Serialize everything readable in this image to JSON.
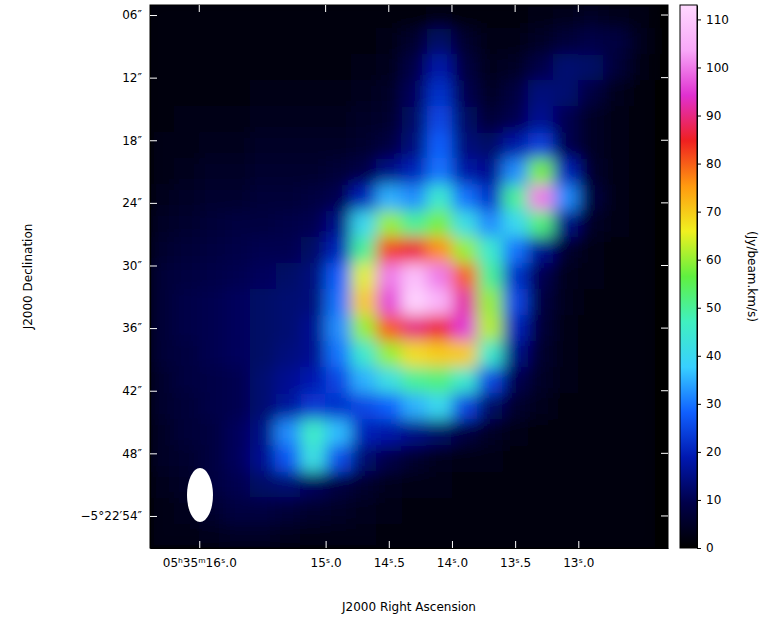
{
  "chart_data": {
    "type": "heatmap",
    "xlabel": "J2000 Right Ascension",
    "ylabel": "J2000 Declination",
    "xlim": [
      16.39,
      12.29
    ],
    "ylim": [
      5.04,
      57.07
    ],
    "xticks": [
      {
        "value": 16.0,
        "label": "05ʰ35ᵐ16ˢ.0"
      },
      {
        "value": 15.0,
        "label": "15ˢ.0"
      },
      {
        "value": 14.5,
        "label": "14ˢ.5"
      },
      {
        "value": 14.0,
        "label": "14ˢ.0"
      },
      {
        "value": 13.5,
        "label": "13ˢ.5"
      },
      {
        "value": 13.0,
        "label": "13ˢ.0"
      }
    ],
    "yticks": [
      {
        "value": 6,
        "label": "06″"
      },
      {
        "value": 12,
        "label": "12″"
      },
      {
        "value": 18,
        "label": "18″"
      },
      {
        "value": 24,
        "label": "24″"
      },
      {
        "value": 30,
        "label": "30″"
      },
      {
        "value": 36,
        "label": "36″"
      },
      {
        "value": 42,
        "label": "42″"
      },
      {
        "value": 48,
        "label": "48″"
      },
      {
        "value": 54,
        "label": "−5°22′54″"
      }
    ],
    "x": [
      16.3,
      16.1,
      15.9,
      15.7,
      15.5,
      15.3,
      15.1,
      14.9,
      14.7,
      14.5,
      14.3,
      14.1,
      13.9,
      13.7,
      13.5,
      13.3,
      13.1,
      12.9,
      12.7,
      12.5
    ],
    "y": [
      6,
      8.5,
      11,
      13.5,
      16,
      18.5,
      21,
      23.5,
      26,
      28.5,
      31,
      33.5,
      36,
      38.5,
      41,
      43.5,
      46,
      48.5,
      51,
      53.5,
      56
    ],
    "z": [
      [
        2,
        2,
        2,
        2,
        2,
        2,
        2,
        2,
        2,
        2,
        2,
        3,
        2,
        2,
        2,
        3,
        4,
        5,
        4,
        3
      ],
      [
        2,
        2,
        2,
        2,
        2,
        2,
        2,
        2,
        2,
        3,
        6,
        12,
        6,
        3,
        3,
        5,
        7,
        9,
        8,
        4
      ],
      [
        2,
        2,
        2,
        2,
        2,
        2,
        2,
        2,
        3,
        4,
        9,
        18,
        8,
        4,
        5,
        9,
        13,
        12,
        7,
        3
      ],
      [
        2,
        2,
        2,
        2,
        3,
        3,
        3,
        3,
        4,
        5,
        11,
        22,
        10,
        5,
        8,
        14,
        13,
        8,
        4,
        2
      ],
      [
        2,
        3,
        3,
        3,
        4,
        4,
        4,
        4,
        5,
        6,
        12,
        25,
        12,
        7,
        10,
        16,
        10,
        5,
        3,
        2
      ],
      [
        3,
        3,
        4,
        4,
        5,
        5,
        5,
        5,
        6,
        8,
        14,
        28,
        14,
        12,
        18,
        24,
        10,
        5,
        3,
        2
      ],
      [
        3,
        4,
        5,
        5,
        6,
        6,
        6,
        7,
        9,
        15,
        20,
        30,
        18,
        16,
        32,
        58,
        20,
        6,
        3,
        2
      ],
      [
        4,
        5,
        6,
        6,
        7,
        7,
        8,
        10,
        20,
        35,
        32,
        45,
        30,
        22,
        50,
        100,
        32,
        8,
        3,
        2
      ],
      [
        5,
        6,
        7,
        8,
        8,
        9,
        10,
        15,
        40,
        60,
        50,
        58,
        42,
        32,
        40,
        52,
        15,
        5,
        3,
        2
      ],
      [
        6,
        7,
        8,
        9,
        10,
        10,
        12,
        20,
        50,
        82,
        86,
        76,
        60,
        45,
        30,
        16,
        6,
        3,
        2,
        2
      ],
      [
        7,
        8,
        9,
        10,
        11,
        12,
        14,
        28,
        65,
        100,
        108,
        100,
        80,
        50,
        22,
        10,
        4,
        3,
        2,
        2
      ],
      [
        7,
        9,
        10,
        11,
        12,
        13,
        14,
        30,
        70,
        96,
        112,
        106,
        92,
        60,
        25,
        8,
        4,
        2,
        2,
        2
      ],
      [
        7,
        9,
        10,
        11,
        12,
        13,
        16,
        32,
        60,
        80,
        90,
        86,
        95,
        62,
        20,
        7,
        3,
        2,
        2,
        2
      ],
      [
        7,
        8,
        10,
        11,
        12,
        14,
        16,
        30,
        45,
        60,
        68,
        70,
        70,
        45,
        15,
        6,
        3,
        2,
        2,
        2
      ],
      [
        6,
        8,
        9,
        10,
        13,
        16,
        19,
        25,
        35,
        42,
        50,
        52,
        45,
        25,
        10,
        5,
        3,
        2,
        2,
        2
      ],
      [
        6,
        7,
        9,
        10,
        13,
        17,
        23,
        22,
        25,
        28,
        35,
        40,
        25,
        12,
        6,
        4,
        2,
        2,
        2,
        2
      ],
      [
        5,
        7,
        8,
        11,
        15,
        32,
        46,
        36,
        20,
        18,
        15,
        12,
        8,
        5,
        3,
        2,
        2,
        2,
        2,
        2
      ],
      [
        5,
        6,
        8,
        11,
        16,
        27,
        42,
        26,
        13,
        9,
        6,
        4,
        3,
        3,
        2,
        2,
        2,
        2,
        2,
        2
      ],
      [
        4,
        5,
        8,
        10,
        12,
        13,
        11,
        8,
        6,
        4,
        3,
        3,
        2,
        2,
        2,
        2,
        2,
        2,
        2,
        2
      ],
      [
        3,
        4,
        6,
        8,
        8,
        7,
        6,
        5,
        4,
        3,
        2,
        2,
        2,
        2,
        2,
        2,
        2,
        2,
        2,
        2
      ],
      [
        3,
        3,
        4,
        5,
        5,
        4,
        3,
        3,
        3,
        2,
        2,
        2,
        2,
        2,
        2,
        2,
        2,
        2,
        2,
        2
      ]
    ],
    "colorbar": {
      "label": "(Jy/beam.km/s)",
      "range": [
        0,
        113
      ],
      "ticks": [
        0,
        10,
        20,
        30,
        40,
        50,
        60,
        70,
        80,
        90,
        100,
        110
      ]
    }
  }
}
